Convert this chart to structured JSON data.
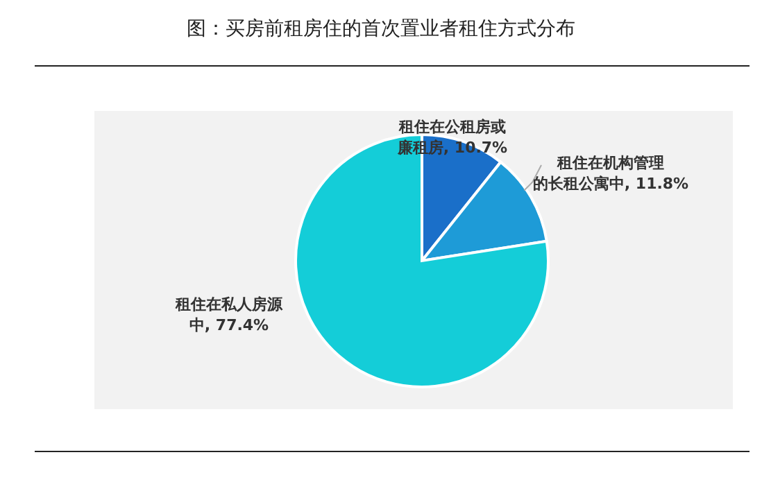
{
  "chart_data": {
    "type": "pie",
    "title": "图：买房前租房住的首次置业者租住方式分布",
    "categories": [
      "租住在公租房或廉租房",
      "租住在机构管理的长租公寓中",
      "租住在私人房源中"
    ],
    "values": [
      10.7,
      11.8,
      77.4
    ],
    "colors": [
      "#1a6fc9",
      "#1e9bd7",
      "#14cdd8"
    ],
    "value_labels": [
      "10.7%",
      "11.8%",
      "77.4%"
    ],
    "legend": false
  }
}
